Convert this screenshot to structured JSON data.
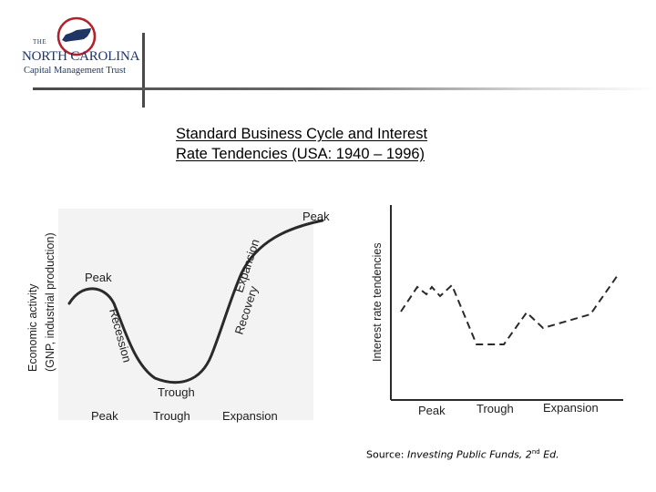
{
  "logo": {
    "line1": "THE",
    "line2": "NORTH CAROLINA",
    "line3": "Capital Management Trust",
    "colors": {
      "navy": "#1f3564",
      "red": "#b1222c"
    }
  },
  "title": {
    "line1": "Standard Business Cycle and Interest",
    "line2": "Rate Tendencies (USA: 1940 – 1996)"
  },
  "left_chart": {
    "y_axis_label_line1": "Economic activity",
    "y_axis_label_line2": "(GNP, industrial production)",
    "curve_labels": {
      "peak_top": "Peak",
      "peak_left": "Peak",
      "recession": "Recession",
      "trough": "Trough",
      "expansion": "Expansion",
      "recovery": "Recovery"
    },
    "x_labels": [
      "Peak",
      "Trough",
      "Expansion"
    ]
  },
  "right_chart": {
    "y_axis_label": "Interest rate tendencies",
    "x_labels": [
      "Peak",
      "Trough",
      "Expansion"
    ]
  },
  "source": {
    "prefix": "Source: ",
    "book": "Investing Public Funds, 2",
    "sup": "nd",
    "suffix": " Ed."
  }
}
